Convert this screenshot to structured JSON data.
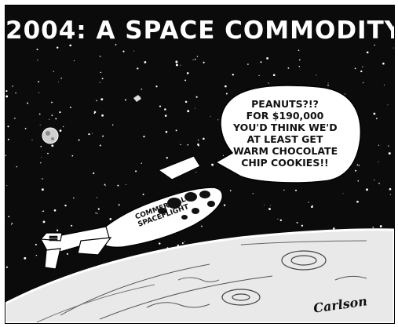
{
  "cartoon": {
    "title": "2004: A SPACE COMMODITY",
    "speech_bubble": {
      "lines": [
        "PEANUTS?!?",
        "FOR $190,000",
        "YOU'D THINK WE'D",
        "AT LEAST GET",
        "WARM CHOCOLATE",
        "CHIP COOKIES!!"
      ]
    },
    "spacecraft_label": {
      "lines": [
        "COMMERCIAL",
        "SPACEFLIGHT"
      ]
    },
    "signature": "Carlson",
    "colors": {
      "space": "#0b0b0b",
      "ink": "#111111",
      "paper": "#ffffff"
    }
  }
}
